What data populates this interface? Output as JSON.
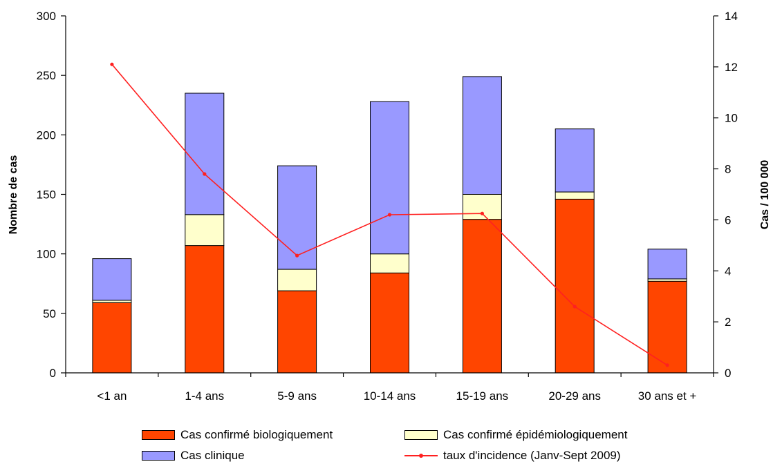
{
  "chart_data": {
    "type": "bar",
    "stacked": true,
    "categories": [
      "<1 an",
      "1-4 ans",
      "5-9 ans",
      "10-14 ans",
      "15-19 ans",
      "20-29 ans",
      "30 ans et +"
    ],
    "series": [
      {
        "name": "Cas confirmé biologiquement",
        "values": [
          59,
          107,
          69,
          84,
          129,
          146,
          77
        ],
        "color": "#ff4500"
      },
      {
        "name": "Cas confirmé épidémiologiquement",
        "values": [
          2,
          26,
          18,
          16,
          21,
          6,
          2
        ],
        "color": "#ffffcc"
      },
      {
        "name": "Cas clinique",
        "values": [
          35,
          102,
          87,
          128,
          99,
          53,
          25
        ],
        "color": "#9999ff"
      }
    ],
    "line_series": {
      "name": "taux d'incidence (Janv-Sept 2009)",
      "axis": "right",
      "values": [
        12.1,
        7.8,
        4.6,
        6.2,
        6.25,
        2.6,
        0.3
      ],
      "color": "#ff2020"
    },
    "ylabel": "Nombre de cas",
    "ylabel_right": "Cas / 100 000",
    "ylim": [
      0,
      300
    ],
    "yticks": [
      "0",
      "50",
      "100",
      "150",
      "200",
      "250",
      "300"
    ],
    "ylim_right": [
      0,
      14
    ],
    "yticks_right": [
      "0",
      "2",
      "4",
      "6",
      "8",
      "10",
      "12",
      "14"
    ],
    "grid": false,
    "legend_position": "bottom"
  }
}
